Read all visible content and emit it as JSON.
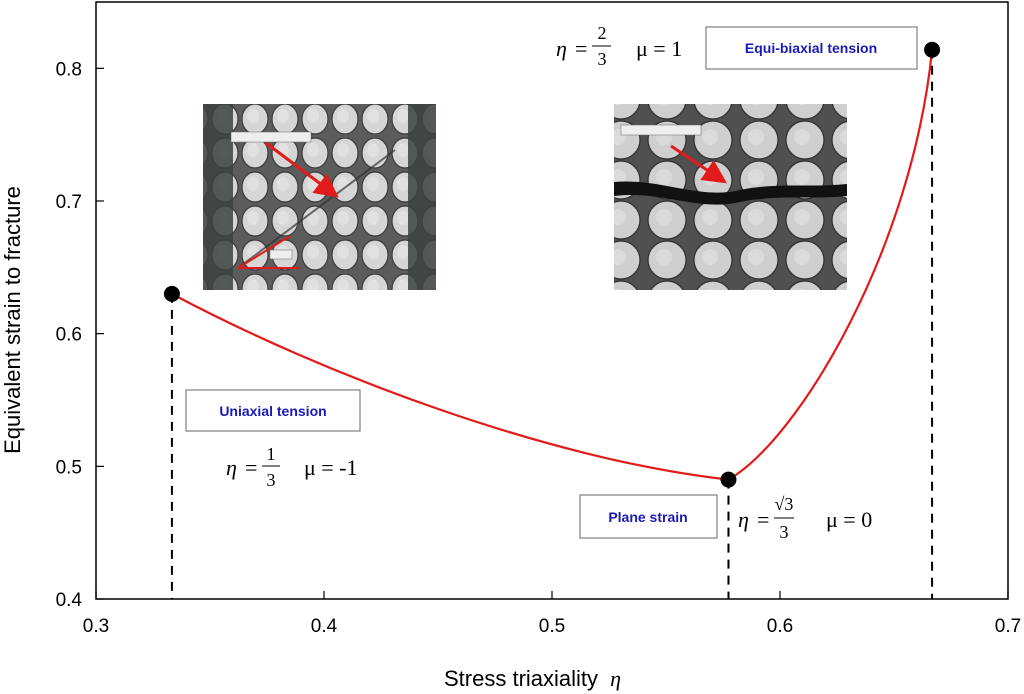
{
  "chart_data": {
    "type": "line",
    "xlabel": "Stress triaxiality",
    "xlabel_symbol": "η",
    "ylabel": "Equivalent strain to fracture",
    "xlim": [
      0.3,
      0.7
    ],
    "ylim": [
      0.4,
      0.85
    ],
    "xticks": [
      "0.3",
      "0.4",
      "0.5",
      "0.6",
      "0.7"
    ],
    "yticks": [
      "0.4",
      "0.5",
      "0.6",
      "0.7",
      "0.8"
    ],
    "xtick_values": [
      0.3,
      0.4,
      0.5,
      0.6,
      0.7
    ],
    "ytick_values": [
      0.4,
      0.5,
      0.6,
      0.7,
      0.8
    ],
    "line_color": "#e31a1a",
    "points": [
      {
        "x": 0.3333,
        "y": 0.63
      },
      {
        "x": 0.5774,
        "y": 0.49
      },
      {
        "x": 0.6667,
        "y": 0.814
      }
    ],
    "annotations": [
      {
        "label": "Uniaxial tension",
        "eta_num": "1",
        "eta_den": "3",
        "mu": "μ = -1"
      },
      {
        "label": "Plane strain",
        "eta_num": "√3",
        "eta_den": "3",
        "mu": "μ = 0"
      },
      {
        "label": "Equi-biaxial tension",
        "eta_num": "2",
        "eta_den": "3",
        "mu": "μ = 1"
      }
    ],
    "grid": false
  },
  "colors": {
    "curve": "#e31a1a",
    "callout_text": "#1a1ab8",
    "marker": "#000000"
  }
}
